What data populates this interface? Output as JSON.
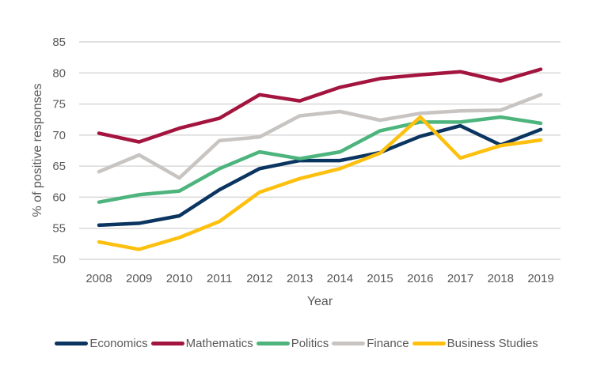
{
  "chart_data": {
    "type": "line",
    "title": "",
    "xlabel": "Year",
    "ylabel": "% of positive responses",
    "x": [
      "2008",
      "2009",
      "2010",
      "2011",
      "2012",
      "2013",
      "2014",
      "2015",
      "2016",
      "2017",
      "2018",
      "2019"
    ],
    "ylim": [
      50,
      85
    ],
    "yticks": [
      "50",
      "55",
      "60",
      "65",
      "70",
      "75",
      "80",
      "85"
    ],
    "ytick_values": [
      50,
      55,
      60,
      65,
      70,
      75,
      80,
      85
    ],
    "grid": "horizontal",
    "legend_position": "bottom",
    "series": [
      {
        "name": "Economics",
        "color": "#0b3561",
        "values": [
          55.5,
          55.8,
          57.0,
          61.2,
          64.6,
          65.9,
          65.9,
          67.2,
          69.8,
          71.5,
          68.4,
          70.9
        ]
      },
      {
        "name": "Mathematics",
        "color": "#a3153f",
        "values": [
          70.3,
          68.9,
          71.1,
          72.7,
          76.5,
          75.5,
          77.7,
          79.1,
          79.7,
          80.2,
          78.7,
          80.6
        ]
      },
      {
        "name": "Politics",
        "color": "#4cb47c",
        "values": [
          59.2,
          60.4,
          61.0,
          64.6,
          67.3,
          66.2,
          67.3,
          70.7,
          72.1,
          72.1,
          72.9,
          71.9
        ]
      },
      {
        "name": "Finance",
        "color": "#c8c4c1",
        "values": [
          64.1,
          66.8,
          63.1,
          69.1,
          69.7,
          73.1,
          73.8,
          72.4,
          73.5,
          73.9,
          74.0,
          76.5
        ]
      },
      {
        "name": "Business Studies",
        "color": "#fdc00f",
        "values": [
          52.8,
          51.6,
          53.5,
          56.1,
          60.8,
          63.0,
          64.6,
          67.1,
          72.9,
          66.3,
          68.3,
          69.2
        ]
      }
    ]
  }
}
